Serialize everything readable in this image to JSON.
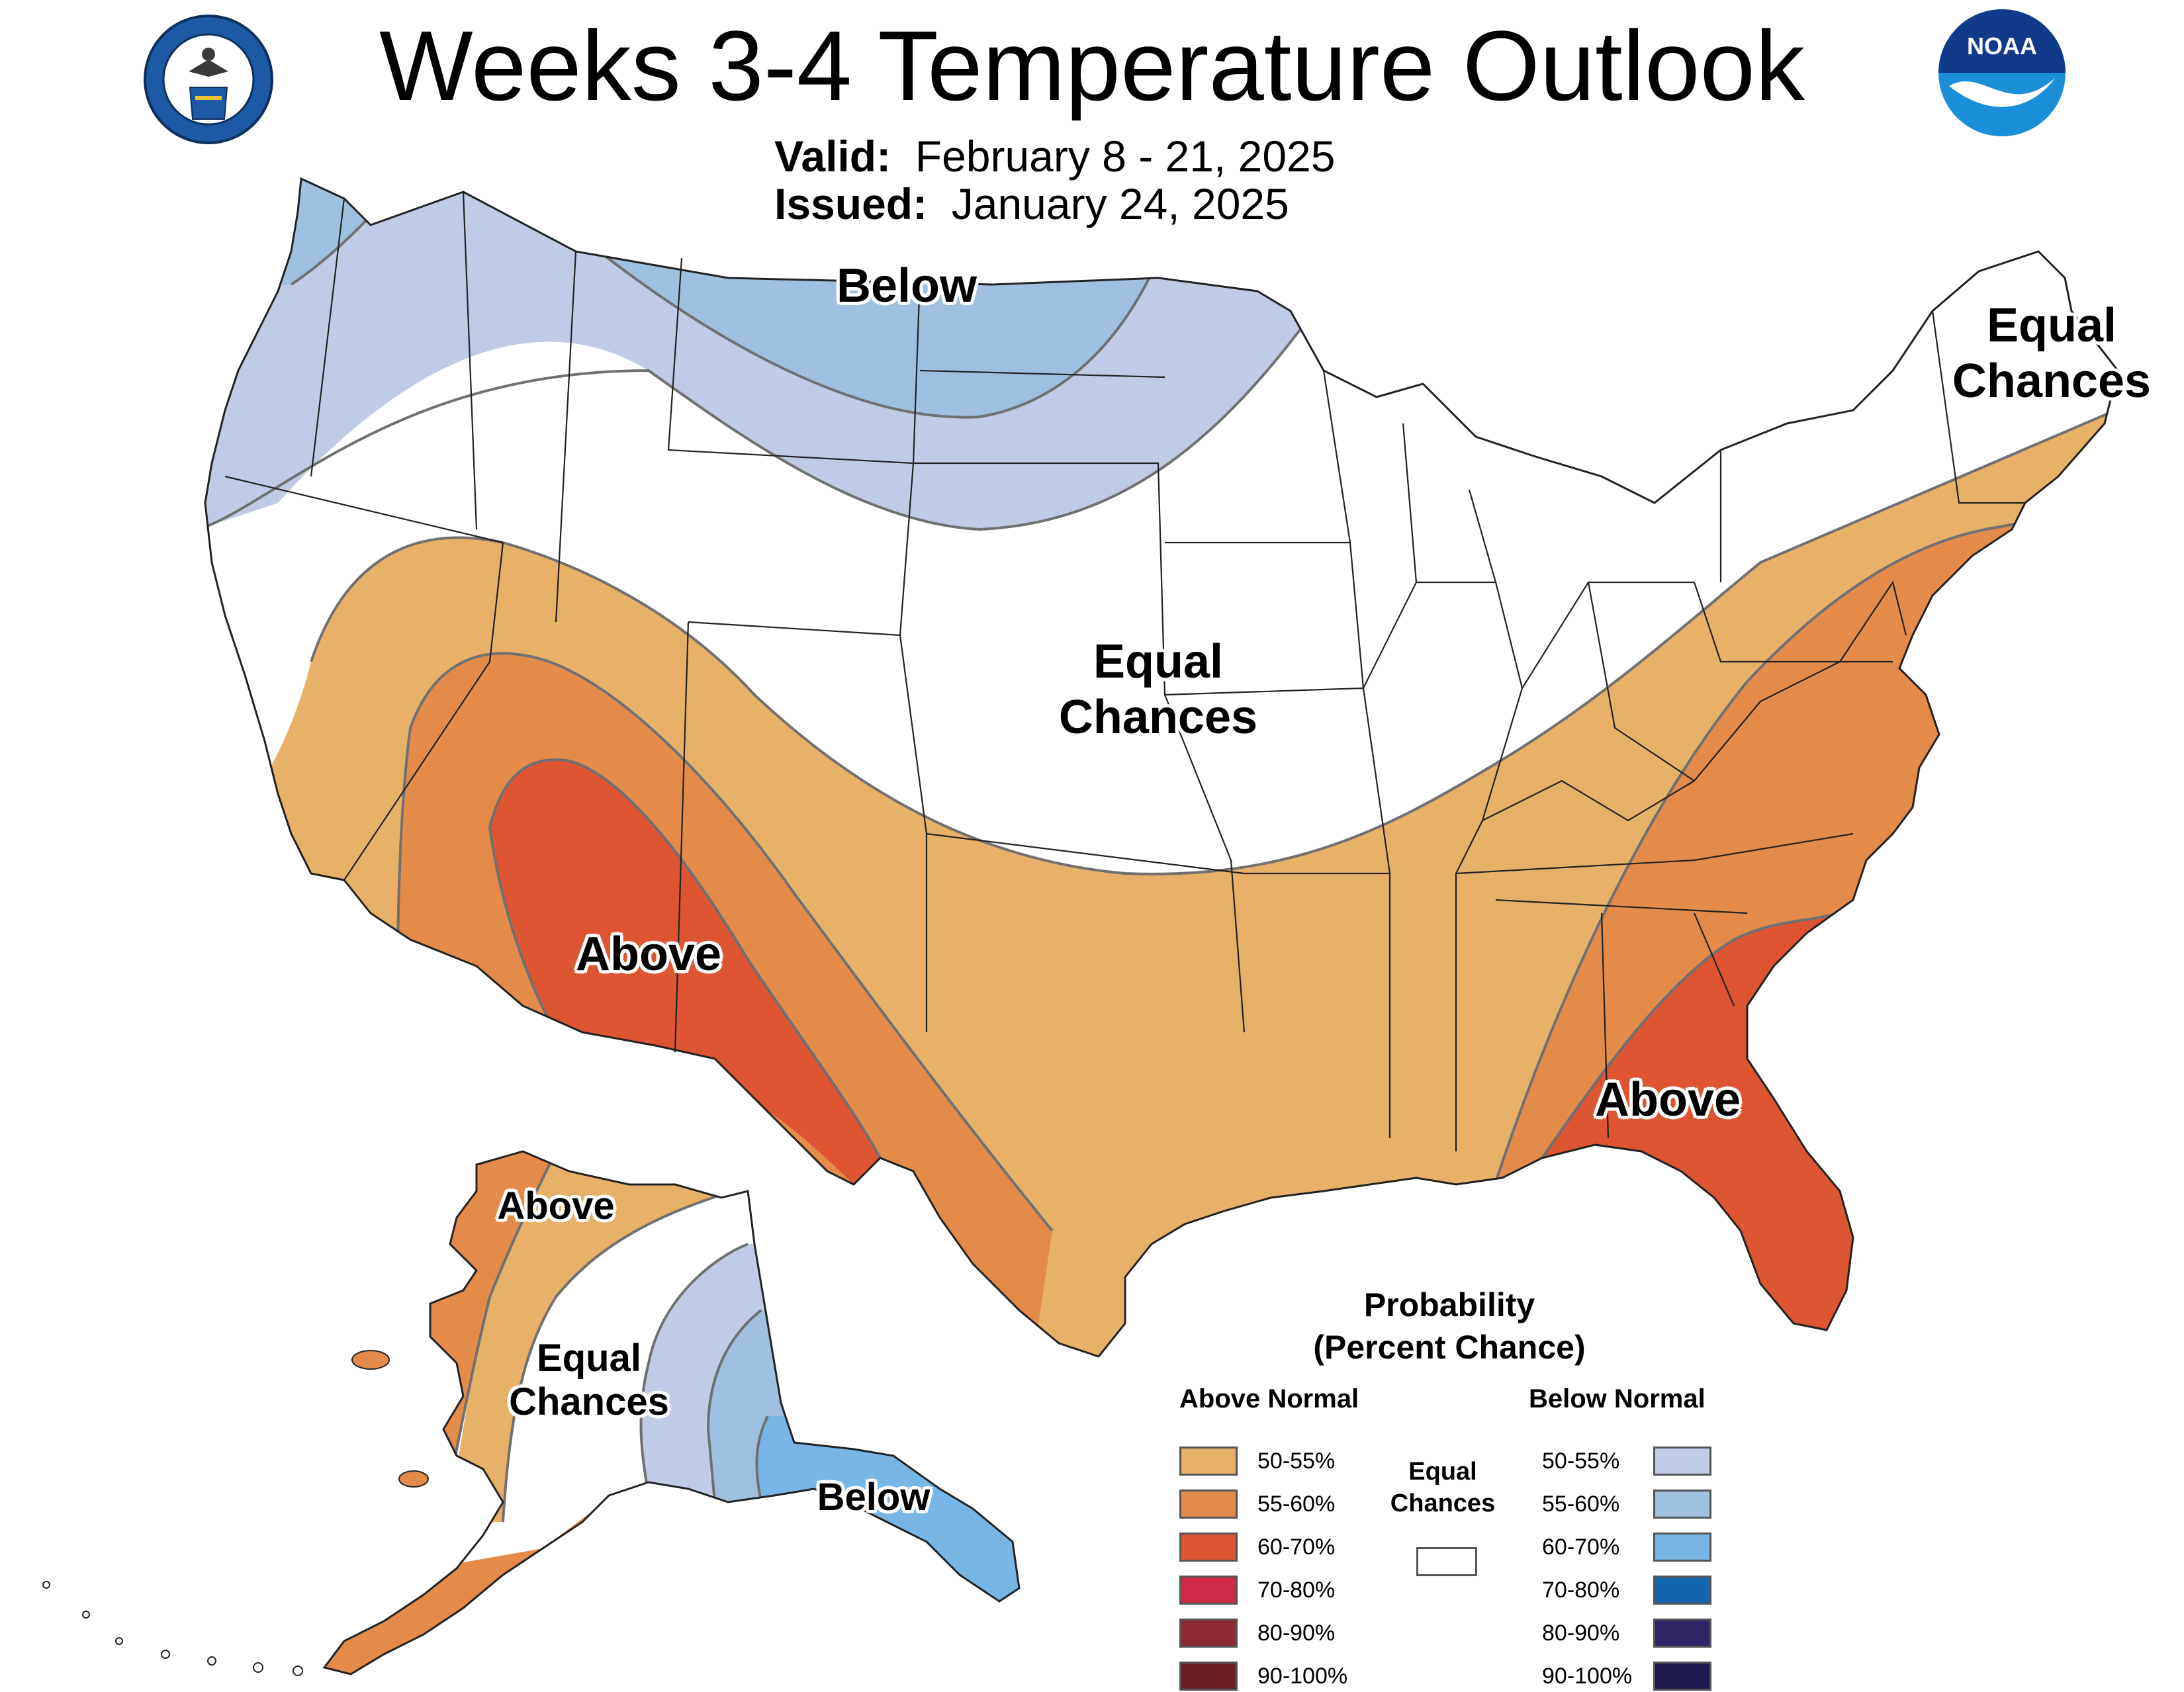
{
  "header": {
    "title": "Weeks 3-4 Temperature Outlook",
    "valid_label": "Valid:",
    "valid_value": "February 8 - 21, 2025",
    "issued_label": "Issued:",
    "issued_value": "January 24, 2025",
    "noaa_logo_text": "NOAA"
  },
  "labels": {
    "conus_below": "Below",
    "conus_ec_center_line1": "Equal",
    "conus_ec_center_line2": "Chances",
    "conus_ec_ne_line1": "Equal",
    "conus_ec_ne_line2": "Chances",
    "conus_above_west": "Above",
    "conus_above_southeast": "Above",
    "ak_above": "Above",
    "ak_ec_line1": "Equal",
    "ak_ec_line2": "Chances",
    "ak_below": "Below"
  },
  "legend": {
    "title_line1": "Probability",
    "title_line2": "(Percent Chance)",
    "above_header": "Above Normal",
    "below_header": "Below Normal",
    "ec_line1": "Equal",
    "ec_line2": "Chances",
    "above": [
      {
        "label": "50-55%",
        "color": "#e8b168"
      },
      {
        "label": "55-60%",
        "color": "#e48b4a"
      },
      {
        "label": "60-70%",
        "color": "#dd5631"
      },
      {
        "label": "70-80%",
        "color": "#cc2a46"
      },
      {
        "label": "80-90%",
        "color": "#8f2a34"
      },
      {
        "label": "90-100%",
        "color": "#6a1e25"
      }
    ],
    "below": [
      {
        "label": "50-55%",
        "color": "#c0cce6"
      },
      {
        "label": "55-60%",
        "color": "#a0c0df"
      },
      {
        "label": "60-70%",
        "color": "#78b6e6"
      },
      {
        "label": "70-80%",
        "color": "#1264ad"
      },
      {
        "label": "80-90%",
        "color": "#2e2466"
      },
      {
        "label": "90-100%",
        "color": "#1e1a50"
      }
    ]
  },
  "colors": {
    "above_50_55": "#e8b168",
    "above_55_60": "#e48b4a",
    "above_60_70": "#dd5631",
    "below_50_55": "#c0cce6",
    "below_55_60": "#a0c0df",
    "below_60_70": "#78b6e6",
    "contour": "#707070",
    "state_border": "#222222"
  }
}
